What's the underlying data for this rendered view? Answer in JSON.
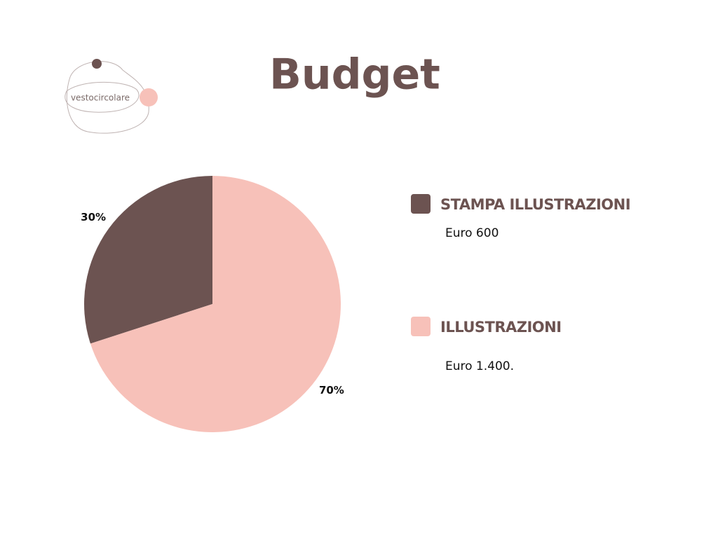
{
  "logo": {
    "text": "vestocircolare"
  },
  "chart_data": {
    "type": "pie",
    "title": "Budget",
    "categories": [
      "STAMPA ILLUSTRAZIONI",
      "ILLUSTRAZIONI"
    ],
    "values": [
      30,
      70
    ],
    "value_labels": [
      "30%",
      "70%"
    ],
    "colors": [
      "#6c5351",
      "#f7c1b9"
    ],
    "descriptions": [
      "Euro 600",
      "Euro 1.400."
    ]
  }
}
